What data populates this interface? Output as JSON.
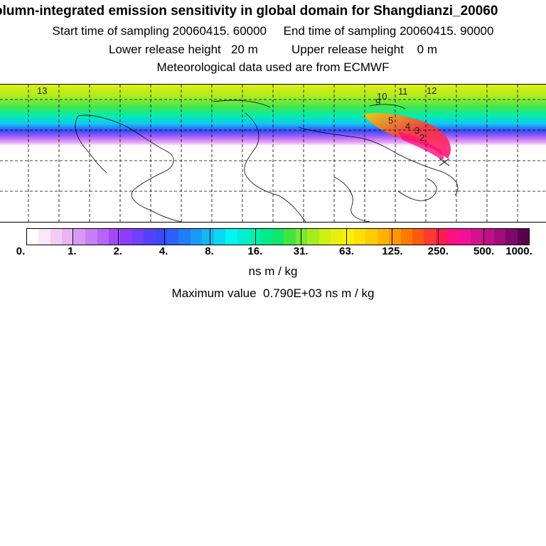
{
  "header": {
    "title": "olumn-integrated emission sensitivity in global domain for Shangdianzi_20060",
    "sampling_line": "Start time of sampling 20060415. 60000     End time of sampling 20060415. 90000",
    "release_line": "Lower release height   20 m          Upper release height    0 m",
    "met_line": "Meteorological data used are from ECMWF"
  },
  "map": {
    "trajectory_labels": [
      "13",
      "10",
      "11",
      "12",
      "9",
      "5",
      "4",
      "3",
      "2"
    ]
  },
  "colorbar": {
    "colors": [
      "#ffffff",
      "#fbe6fb",
      "#f4ccf4",
      "#eab3f5",
      "#d899f5",
      "#c77ff5",
      "#b565f7",
      "#a24af8",
      "#8a3dfa",
      "#7040fb",
      "#5541fb",
      "#3a4af8",
      "#2962ff",
      "#1f7ef8",
      "#1a9af4",
      "#12b8f2",
      "#0fd6f0",
      "#00f6f0",
      "#00f0d0",
      "#00eeae",
      "#00ec8c",
      "#10e66a",
      "#40e640",
      "#78e830",
      "#a8ec20",
      "#cff010",
      "#e7f00a",
      "#fbf000",
      "#fde000",
      "#ffcc00",
      "#ffb300",
      "#ff9800",
      "#ff7a00",
      "#ff5a10",
      "#ff3a30",
      "#ff1a50",
      "#ff1080",
      "#f0109a",
      "#d81090",
      "#c00f88",
      "#a00c7a",
      "#80086a",
      "#5a0050"
    ],
    "tick_labels": [
      "0.",
      "1.",
      "2.",
      "4.",
      "8.",
      "16.",
      "31.",
      "63.",
      "125.",
      "250.",
      "500.",
      "1000."
    ],
    "unit": "ns m / kg"
  },
  "footer": {
    "max_value": "Maximum value  0.790E+03 ns m / kg"
  }
}
